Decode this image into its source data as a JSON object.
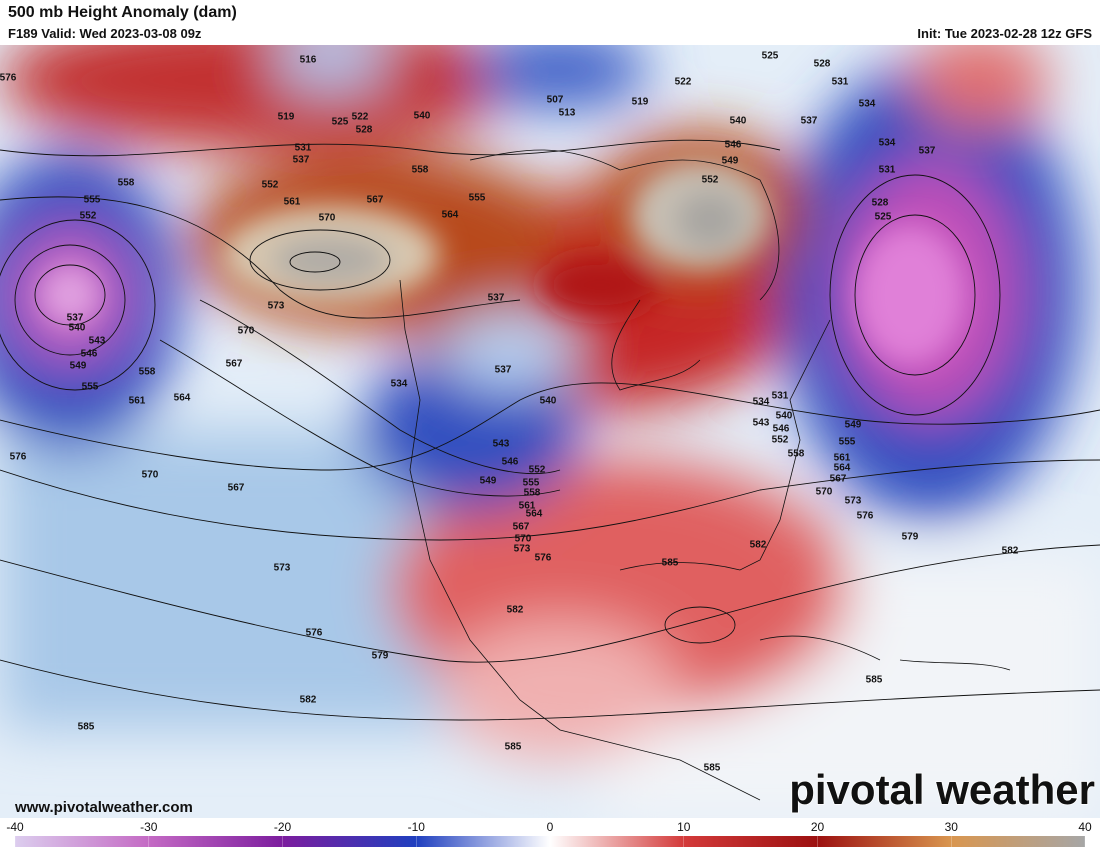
{
  "header": {
    "title": "500 mb Height Anomaly (dam)",
    "valid": "F189 Valid: Wed 2023-03-08 09z",
    "init": "Init: Tue 2023-02-28 12z GFS"
  },
  "url": "www.pivotalweather.com",
  "watermark": "pivotal weather",
  "contour_labels": [
    "576",
    "516",
    "519",
    "525",
    "522",
    "528",
    "531",
    "537",
    "540",
    "507",
    "513",
    "519",
    "522",
    "525",
    "528",
    "531",
    "534",
    "537",
    "540",
    "546",
    "549",
    "552",
    "558",
    "552",
    "561",
    "570",
    "567",
    "564",
    "555",
    "558",
    "555",
    "552",
    "537",
    "540",
    "543",
    "546",
    "549",
    "555",
    "558",
    "561",
    "564",
    "567",
    "570",
    "573",
    "537",
    "537",
    "540",
    "534",
    "543",
    "546",
    "549",
    "552",
    "555",
    "558",
    "561",
    "564",
    "567",
    "570",
    "573",
    "576",
    "576",
    "570",
    "567",
    "573",
    "576",
    "579",
    "582",
    "585",
    "585",
    "585",
    "585",
    "582",
    "585",
    "582",
    "579",
    "582",
    "576",
    "573",
    "570",
    "567",
    "564",
    "561",
    "558",
    "555",
    "552",
    "549",
    "546",
    "543",
    "540",
    "534",
    "531",
    "534",
    "537",
    "531",
    "528",
    "525"
  ],
  "colorbar": {
    "lim": [
      -40,
      40
    ],
    "ticks": [
      -40,
      -30,
      -20,
      -10,
      0,
      10,
      20,
      30,
      40
    ],
    "colors": [
      "#dccdee",
      "#c46ac4",
      "#7c1d9e",
      "#1f3fbf",
      "#ffffff",
      "#d33a3a",
      "#9c1010",
      "#d9964f",
      "#a6a6a6"
    ]
  }
}
